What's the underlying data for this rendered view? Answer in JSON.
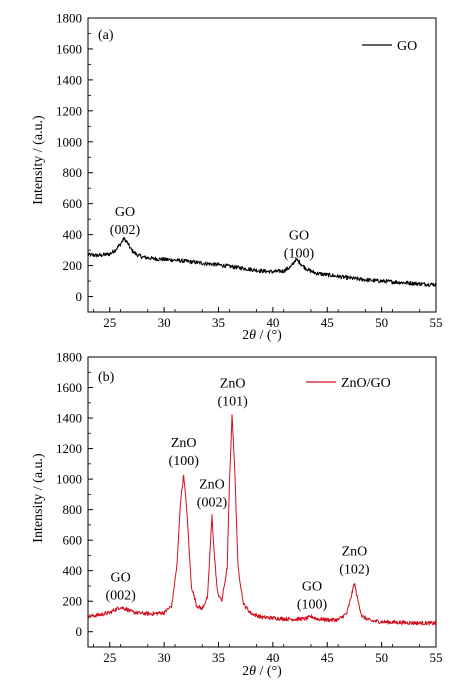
{
  "chart_data": [
    {
      "type": "line",
      "panel_label": "(a)",
      "xlabel": "2θ / (°)",
      "ylabel": "Intensity / (a.u.)",
      "xlim": [
        23,
        55
      ],
      "ylim": [
        -100,
        1800
      ],
      "xticks": [
        25,
        30,
        35,
        40,
        45,
        50,
        55
      ],
      "yticks": [
        0,
        200,
        400,
        600,
        800,
        1000,
        1200,
        1400,
        1600,
        1800
      ],
      "legend_position": "top-right",
      "series": [
        {
          "name": "GO",
          "color": "#000000",
          "x": [
            23,
            24,
            25,
            25.5,
            26,
            26.3,
            26.6,
            27,
            27.5,
            28,
            29,
            30,
            31,
            32,
            33,
            34,
            35,
            36,
            37,
            38,
            39,
            40,
            41,
            41.7,
            42.1,
            42.4,
            42.8,
            43.3,
            44,
            45,
            46,
            47,
            48,
            49,
            50,
            51,
            52,
            53,
            54,
            55
          ],
          "values": [
            270,
            265,
            275,
            300,
            340,
            375,
            350,
            300,
            270,
            255,
            245,
            240,
            235,
            228,
            220,
            212,
            205,
            195,
            185,
            175,
            165,
            160,
            165,
            195,
            240,
            225,
            195,
            170,
            150,
            140,
            130,
            120,
            112,
            105,
            100,
            95,
            90,
            85,
            80,
            78
          ]
        }
      ],
      "annotations": [
        {
          "label": "GO",
          "sub": "(002)",
          "x": 26.4,
          "y": 520
        },
        {
          "label": "GO",
          "sub": "(100)",
          "x": 42.4,
          "y": 370
        }
      ]
    },
    {
      "type": "line",
      "panel_label": "(b)",
      "xlabel": "2θ / (°)",
      "ylabel": "Intensity / (a.u.)",
      "xlim": [
        23,
        55
      ],
      "ylim": [
        -100,
        1800
      ],
      "xticks": [
        25,
        30,
        35,
        40,
        45,
        50,
        55
      ],
      "yticks": [
        0,
        200,
        400,
        600,
        800,
        1000,
        1200,
        1400,
        1600,
        1800
      ],
      "legend_position": "top-right",
      "series": [
        {
          "name": "ZnO/GO",
          "color": "#d0101e",
          "x": [
            23,
            24,
            25,
            25.5,
            26,
            26.5,
            27,
            28,
            29,
            30,
            30.7,
            31.2,
            31.5,
            31.8,
            32.1,
            32.5,
            33,
            33.5,
            34,
            34.2,
            34.4,
            34.6,
            34.9,
            35.3,
            35.8,
            36.0,
            36.25,
            36.5,
            36.8,
            37.3,
            38,
            39,
            40,
            41,
            42,
            43,
            43.6,
            44,
            45,
            46,
            46.8,
            47.2,
            47.5,
            47.8,
            48.2,
            49,
            50,
            51,
            52,
            53,
            54,
            55
          ],
          "values": [
            100,
            110,
            125,
            145,
            160,
            150,
            130,
            120,
            118,
            125,
            170,
            450,
            850,
            1030,
            780,
            300,
            170,
            150,
            230,
            500,
            760,
            520,
            260,
            200,
            420,
            950,
            1430,
            1050,
            420,
            180,
            120,
            95,
            90,
            85,
            82,
            85,
            100,
            85,
            78,
            78,
            120,
            230,
            320,
            210,
            100,
            72,
            65,
            62,
            60,
            58,
            57,
            55
          ]
        }
      ],
      "annotations": [
        {
          "label": "GO",
          "sub": "(002)",
          "x": 26.0,
          "y": 330
        },
        {
          "label": "ZnO",
          "sub": "(100)",
          "x": 31.8,
          "y": 1210
        },
        {
          "label": "ZnO",
          "sub": "(002)",
          "x": 34.4,
          "y": 940
        },
        {
          "label": "ZnO",
          "sub": "(101)",
          "x": 36.3,
          "y": 1600
        },
        {
          "label": "GO",
          "sub": "(100)",
          "x": 43.6,
          "y": 270
        },
        {
          "label": "ZnO",
          "sub": "(102)",
          "x": 47.5,
          "y": 500
        }
      ]
    }
  ]
}
